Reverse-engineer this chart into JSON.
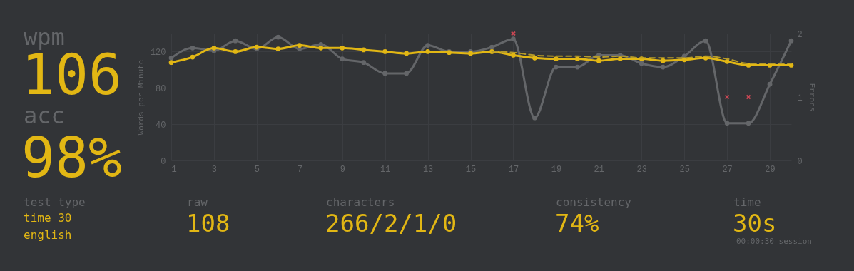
{
  "chart_data": {
    "type": "line",
    "ylabel": "Words per Minute",
    "y2label": "Errors",
    "x": [
      1,
      2,
      3,
      4,
      5,
      6,
      7,
      8,
      9,
      10,
      11,
      12,
      13,
      14,
      15,
      16,
      17,
      18,
      19,
      20,
      21,
      22,
      23,
      24,
      25,
      26,
      27,
      28,
      29,
      30
    ],
    "xlim": [
      1,
      30
    ],
    "xticks": [
      1,
      3,
      5,
      7,
      9,
      11,
      13,
      15,
      17,
      19,
      21,
      23,
      25,
      27,
      29
    ],
    "ylim": [
      0,
      140
    ],
    "yticks": [
      0,
      40,
      80,
      120
    ],
    "y2lim": [
      0,
      2
    ],
    "y2ticks": [
      0,
      1,
      2
    ],
    "grid": true,
    "series": [
      {
        "color": "#646669",
        "marker": "circle",
        "values": [
          113,
          124,
          121,
          132,
          123,
          136,
          123,
          128,
          112,
          108,
          96,
          96,
          127,
          120,
          120,
          125,
          134,
          47,
          103,
          103,
          116,
          116,
          107,
          103,
          115,
          132,
          41,
          41,
          84,
          132
        ]
      },
      {
        "color": "#e2b714",
        "marker": "circle",
        "values": [
          108,
          114,
          124,
          120,
          125,
          123,
          127,
          124,
          124,
          122,
          120,
          118,
          120,
          119,
          118,
          120,
          116,
          113,
          112,
          112,
          110,
          112,
          112,
          110,
          111,
          113,
          109,
          105,
          105,
          105
        ]
      },
      {
        "color": "#b59a2a",
        "marker": "none",
        "line_style": "dashed",
        "x": [
          16,
          17,
          18,
          19,
          20,
          21,
          22,
          23,
          24,
          25,
          26,
          27,
          28,
          29,
          30
        ],
        "values": [
          120,
          119,
          116,
          115,
          115,
          114,
          115,
          113,
          113,
          113,
          115,
          112,
          107,
          107,
          107
        ]
      },
      {
        "type": "scatter",
        "axis": "y2",
        "color": "#ca4754",
        "marker": "cross",
        "x": [
          17,
          27,
          28
        ],
        "values": [
          2,
          1,
          1
        ]
      }
    ],
    "annotations": [
      "wpm",
      "106",
      "acc",
      "98%",
      "test type",
      "time 30",
      "english",
      "raw",
      "108",
      "characters",
      "266/2/1/0",
      "consistency",
      "74%",
      "time",
      "30s",
      "00:00:30 session"
    ]
  }
}
